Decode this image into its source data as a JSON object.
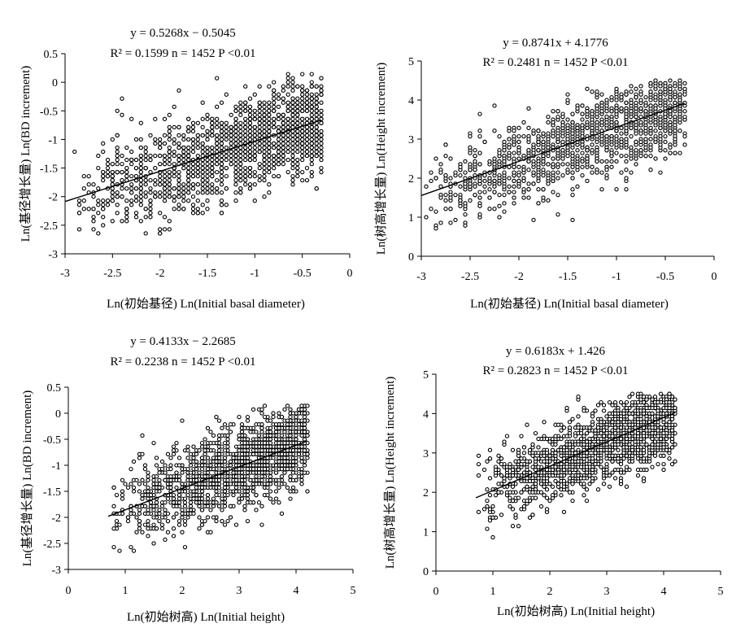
{
  "chart_data": [
    {
      "type": "scatter",
      "id": "p1",
      "xlabel": "Ln(初始基径)   Ln(Initial basal diameter)",
      "ylabel": "Ln(基径增长量) Ln(BD increment)",
      "xlim": [
        -3,
        0
      ],
      "ylim": [
        -3,
        0.5
      ],
      "x_ticks": [
        -3,
        -2.5,
        -2,
        -1.5,
        -1,
        -0.5,
        0
      ],
      "y_ticks": [
        -3,
        -2.5,
        -2,
        -1.5,
        -1,
        -0.5,
        0,
        0.5
      ],
      "x_tick_labels": [
        "-3",
        "-2.5",
        "-2",
        "-1.5",
        "-1",
        "-0.5",
        "0"
      ],
      "y_tick_labels": [
        "-3",
        "-2.5",
        "-2",
        "-1.5",
        "-1",
        "-0.5",
        "0",
        "0.5"
      ],
      "fit": {
        "slope": 0.5268,
        "intercept": -0.5045,
        "x_range": [
          -3,
          -0.3
        ]
      },
      "stats": {
        "equation": "y = 0.5268x − 0.5045",
        "r2": "R² = 0.1599",
        "n": "n = 1452",
        "p": "P <0.01"
      },
      "n_points": 1452,
      "x_data_range": [
        -2.9,
        -0.3
      ],
      "y_data_range": [
        -2.65,
        0.15
      ],
      "residual_sd": 0.42,
      "seed": 11
    },
    {
      "type": "scatter",
      "id": "p2",
      "xlabel": "Ln(初始基径)   Ln(Initial basal diameter)",
      "ylabel": "Ln(树高增长量) Ln(Height increment)",
      "xlim": [
        -3,
        0
      ],
      "ylim": [
        0,
        5
      ],
      "x_ticks": [
        -3,
        -2.5,
        -2,
        -1.5,
        -1,
        -0.5,
        0
      ],
      "y_ticks": [
        0,
        1,
        2,
        3,
        4,
        5
      ],
      "x_tick_labels": [
        "-3",
        "-2.5",
        "-2",
        "-1.5",
        "-1",
        "-0.5",
        "0"
      ],
      "y_tick_labels": [
        "0",
        "1",
        "2",
        "3",
        "4",
        "5"
      ],
      "fit": {
        "slope": 0.8741,
        "intercept": 4.1776,
        "x_range": [
          -3,
          -0.3
        ]
      },
      "stats": {
        "equation": "y = 0.8741x + 4.1776",
        "r2": "R² = 0.2481",
        "n": "n = 1452",
        "p": "P <0.01"
      },
      "n_points": 1452,
      "x_data_range": [
        -3.0,
        -0.3
      ],
      "y_data_range": [
        0.7,
        4.5
      ],
      "residual_sd": 0.55,
      "seed": 23
    },
    {
      "type": "scatter",
      "id": "p3",
      "xlabel": "Ln(初始树高)   Ln(Initial height)",
      "ylabel": "Ln(基径增长量) Ln(BD increment)",
      "xlim": [
        0,
        5
      ],
      "ylim": [
        -3,
        0.5
      ],
      "x_ticks": [
        0,
        1,
        2,
        3,
        4,
        5
      ],
      "y_ticks": [
        -3,
        -2.5,
        -2,
        -1.5,
        -1,
        -0.5,
        0,
        0.5
      ],
      "x_tick_labels": [
        "0",
        "1",
        "2",
        "3",
        "4",
        "5"
      ],
      "y_tick_labels": [
        "-3",
        "-2.5",
        "-2",
        "-1.5",
        "-1",
        "-0.5",
        "0",
        "0.5"
      ],
      "fit": {
        "slope": 0.4133,
        "intercept": -2.2685,
        "x_range": [
          0.7,
          4.2
        ]
      },
      "stats": {
        "equation": "y = 0.4133x − 2.2685",
        "r2": "R² = 0.2238",
        "n": "n = 1452",
        "p": "P <0.01"
      },
      "n_points": 1452,
      "x_data_range": [
        0.7,
        4.2
      ],
      "y_data_range": [
        -2.65,
        0.15
      ],
      "residual_sd": 0.42,
      "seed": 37
    },
    {
      "type": "scatter",
      "id": "p4",
      "xlabel": "Ln(初始树高)   Ln(Initial height)",
      "ylabel": "Ln(树高增长量) Ln(Height increment)",
      "xlim": [
        0,
        5
      ],
      "ylim": [
        0,
        5
      ],
      "x_ticks": [
        0,
        1,
        2,
        3,
        4,
        5
      ],
      "y_ticks": [
        0,
        1,
        2,
        3,
        4,
        5
      ],
      "x_tick_labels": [
        "0",
        "1",
        "2",
        "3",
        "4",
        "5"
      ],
      "y_tick_labels": [
        "0",
        "1",
        "2",
        "3",
        "4",
        "5"
      ],
      "fit": {
        "slope": 0.6183,
        "intercept": 1.426,
        "x_range": [
          0.7,
          4.2
        ]
      },
      "stats": {
        "equation": "y = 0.6183x + 1.426",
        "r2": "R² = 0.2823",
        "n": "n = 1452",
        "p": "P <0.01"
      },
      "n_points": 1452,
      "x_data_range": [
        0.7,
        4.2
      ],
      "y_data_range": [
        0.7,
        4.5
      ],
      "residual_sd": 0.5,
      "seed": 53
    }
  ]
}
